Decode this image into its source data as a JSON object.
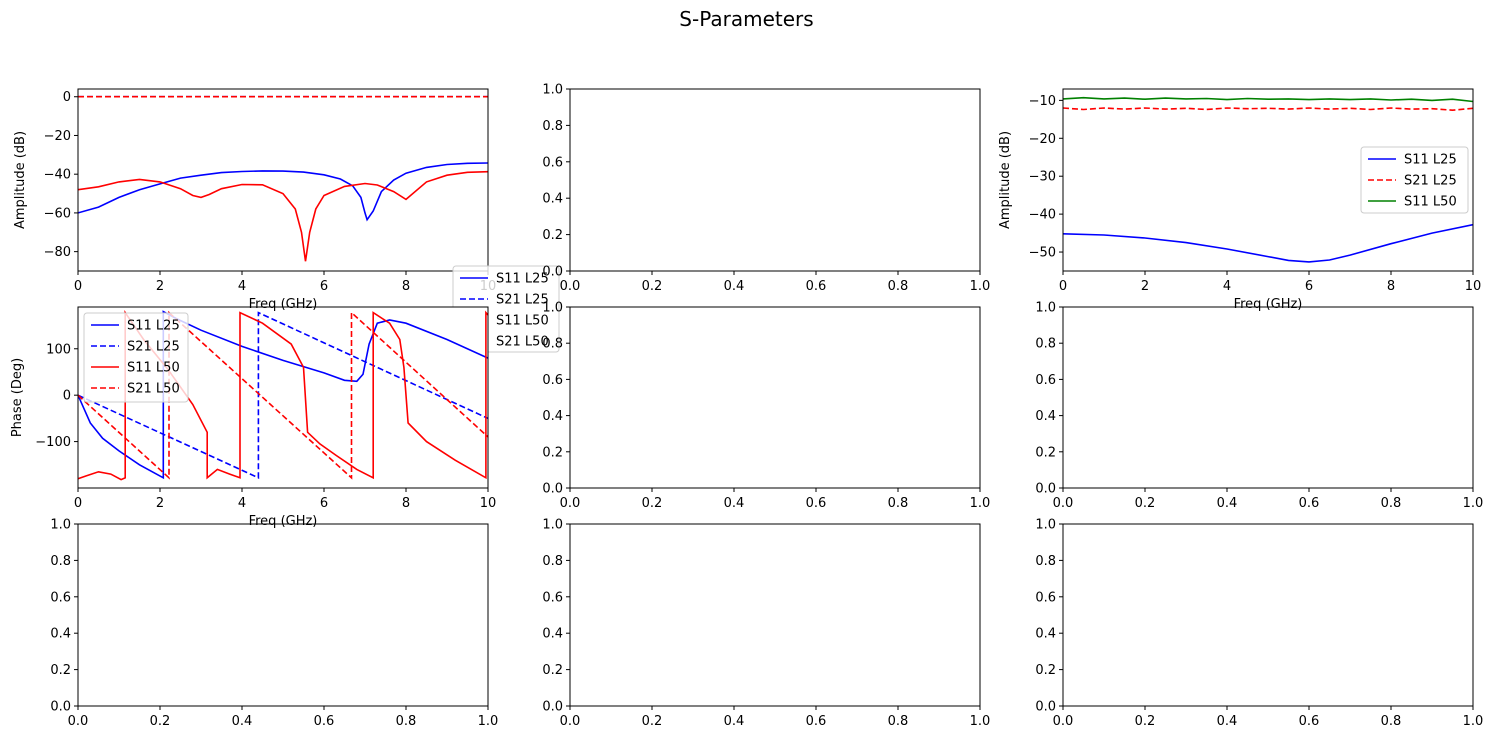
{
  "suptitle": "S-Parameters",
  "colors": {
    "blue": "#0000ff",
    "red": "#ff0000",
    "green": "#008000"
  },
  "chart_data": [
    {
      "id": "amp",
      "type": "line",
      "title": "",
      "xlabel": "Freq (GHz)",
      "ylabel": "Amplitude  (dB)",
      "xlim": [
        0,
        10
      ],
      "ylim": [
        -90,
        4
      ],
      "xticks": [
        0,
        2,
        4,
        6,
        8,
        10
      ],
      "xtick_labels": [
        "0",
        "2",
        "4",
        "6",
        "8",
        "10"
      ],
      "yticks": [
        0,
        -20,
        -40,
        -60,
        -80
      ],
      "ytick_labels": [
        "0",
        "−20",
        "−40",
        "−60",
        "−80"
      ],
      "grid": false,
      "legend": "lower-right",
      "series": [
        {
          "name": "S11 L25",
          "color": "blue",
          "dash": "solid",
          "x": [
            0,
            0.5,
            1,
            1.5,
            2,
            2.5,
            3,
            3.5,
            4,
            4.5,
            5,
            5.5,
            6,
            6.4,
            6.7,
            6.9,
            7.0,
            7.05,
            7.2,
            7.4,
            7.7,
            8,
            8.5,
            9,
            9.5,
            10
          ],
          "y": [
            -60,
            -57,
            -52,
            -48,
            -45,
            -42,
            -40.5,
            -39.2,
            -38.6,
            -38.3,
            -38.4,
            -38.9,
            -40.3,
            -42.5,
            -46,
            -52,
            -60,
            -63.5,
            -59,
            -49,
            -43,
            -39.5,
            -36.5,
            -35,
            -34.4,
            -34.2
          ]
        },
        {
          "name": "S21 L25",
          "color": "blue",
          "dash": "dashed",
          "x": [
            0,
            2,
            4,
            6,
            8,
            10
          ],
          "y": [
            0,
            0,
            0,
            0,
            0,
            0
          ]
        },
        {
          "name": "S11 L50",
          "color": "red",
          "dash": "solid",
          "x": [
            0,
            0.5,
            1,
            1.5,
            2,
            2.5,
            2.8,
            3,
            3.2,
            3.5,
            4,
            4.5,
            5,
            5.3,
            5.45,
            5.55,
            5.65,
            5.8,
            6,
            6.5,
            7,
            7.3,
            7.7,
            8,
            8.5,
            9,
            9.5,
            10
          ],
          "y": [
            -48,
            -46.5,
            -44,
            -42.7,
            -44,
            -47.5,
            -51,
            -52,
            -50.5,
            -47.5,
            -45.3,
            -45.5,
            -50,
            -58,
            -70,
            -85,
            -70,
            -58,
            -51,
            -46.3,
            -44.8,
            -45.6,
            -49,
            -53,
            -44,
            -40.5,
            -39,
            -38.7
          ]
        },
        {
          "name": "S21 L50",
          "color": "red",
          "dash": "dashed",
          "x": [
            0,
            2,
            4,
            6,
            8,
            10
          ],
          "y": [
            0,
            0,
            0,
            0,
            0,
            0
          ]
        }
      ]
    },
    {
      "id": "empty-1-2",
      "type": "line",
      "xlabel": "",
      "ylabel": "",
      "xlim": [
        0,
        1
      ],
      "ylim": [
        0,
        1
      ],
      "xticks": [
        0,
        0.2,
        0.4,
        0.6,
        0.8,
        1
      ],
      "xtick_labels": [
        "0.0",
        "0.2",
        "0.4",
        "0.6",
        "0.8",
        "1.0"
      ],
      "yticks": [
        0,
        0.2,
        0.4,
        0.6,
        0.8,
        1
      ],
      "ytick_labels": [
        "0.0",
        "0.2",
        "0.4",
        "0.6",
        "0.8",
        "1.0"
      ],
      "series": []
    },
    {
      "id": "amp2",
      "type": "line",
      "title": "",
      "xlabel": "Freq (GHz)",
      "ylabel": "Amplitude  (dB)",
      "xlim": [
        0,
        10
      ],
      "ylim": [
        -55,
        -7
      ],
      "xticks": [
        0,
        2,
        4,
        6,
        8,
        10
      ],
      "xtick_labels": [
        "0",
        "2",
        "4",
        "6",
        "8",
        "10"
      ],
      "yticks": [
        -10,
        -20,
        -30,
        -40,
        -50
      ],
      "ytick_labels": [
        "−10",
        "−20",
        "−30",
        "−40",
        "−50"
      ],
      "grid": false,
      "legend": "center-right",
      "series": [
        {
          "name": "S11 L25",
          "color": "blue",
          "dash": "solid",
          "x": [
            0,
            1,
            2,
            3,
            4,
            5,
            5.5,
            6,
            6.5,
            7,
            8,
            9,
            10
          ],
          "y": [
            -45.2,
            -45.5,
            -46.3,
            -47.5,
            -49.2,
            -51.2,
            -52.2,
            -52.6,
            -52.1,
            -50.8,
            -47.8,
            -45,
            -42.8
          ]
        },
        {
          "name": "S21 L25",
          "color": "red",
          "dash": "dashed",
          "x": [
            0,
            0.5,
            1,
            1.5,
            2,
            2.5,
            3,
            3.5,
            4,
            4.5,
            5,
            5.5,
            6,
            6.5,
            7,
            7.5,
            8,
            8.5,
            9,
            9.5,
            10
          ],
          "y": [
            -12,
            -12.4,
            -12,
            -12.3,
            -12,
            -12.3,
            -12.1,
            -12.4,
            -12,
            -12.2,
            -12.1,
            -12.3,
            -12,
            -12.3,
            -12.1,
            -12.4,
            -12,
            -12.3,
            -12.2,
            -12.6,
            -12.1
          ]
        },
        {
          "name": "S11 L50",
          "color": "green",
          "dash": "solid",
          "x": [
            0,
            0.5,
            1,
            1.5,
            2,
            2.5,
            3,
            3.5,
            4,
            4.5,
            5,
            5.5,
            6,
            6.5,
            7,
            7.5,
            8,
            8.5,
            9,
            9.5,
            10
          ],
          "y": [
            -9.6,
            -9.3,
            -9.6,
            -9.4,
            -9.7,
            -9.4,
            -9.6,
            -9.5,
            -9.8,
            -9.5,
            -9.7,
            -9.6,
            -9.8,
            -9.6,
            -9.8,
            -9.6,
            -9.9,
            -9.7,
            -10,
            -9.7,
            -10.3
          ]
        }
      ]
    },
    {
      "id": "phase",
      "type": "line",
      "title": "",
      "xlabel": "Freq (GHz)",
      "ylabel": "Phase (Deg)",
      "xlim": [
        0,
        10
      ],
      "ylim": [
        -200,
        190
      ],
      "xticks": [
        0,
        2,
        4,
        6,
        8,
        10
      ],
      "xtick_labels": [
        "0",
        "2",
        "4",
        "6",
        "8",
        "10"
      ],
      "yticks": [
        100,
        0,
        -100
      ],
      "ytick_labels": [
        "100",
        "0",
        "−100"
      ],
      "grid": false,
      "legend": "upper-left",
      "series": [
        {
          "name": "S11 L25",
          "color": "blue",
          "dash": "solid",
          "x": [
            0,
            0.3,
            0.6,
            1,
            1.5,
            2.08,
            2.08,
            2.4,
            3,
            4,
            5,
            6,
            6.5,
            6.8,
            6.95,
            7.1,
            7.3,
            7.6,
            8,
            9,
            10
          ],
          "y": [
            0,
            -60,
            -93,
            -120,
            -150,
            -178,
            180,
            165,
            140,
            105,
            75,
            48,
            32,
            30,
            45,
            110,
            155,
            162,
            155,
            120,
            80
          ]
        },
        {
          "name": "S21 L25",
          "color": "blue",
          "dash": "dashed",
          "x": [
            0,
            4.4,
            4.4,
            10
          ],
          "y": [
            0,
            -178,
            178,
            -50
          ]
        },
        {
          "name": "S11 L50",
          "color": "red",
          "dash": "solid",
          "x": [
            0,
            0.2,
            0.5,
            0.8,
            1.05,
            1.15,
            1.15,
            1.6,
            2.2,
            2.8,
            3.15,
            3.15,
            3.4,
            3.7,
            3.95,
            3.95,
            4.5,
            5.2,
            5.5,
            5.6,
            5.9,
            6.3,
            6.8,
            7.2,
            7.2,
            7.6,
            7.85,
            7.95,
            8.05,
            8.5,
            9.2,
            9.95,
            9.95,
            10.0
          ],
          "y": [
            -180,
            -174,
            -165,
            -170,
            -182,
            -178,
            178,
            120,
            55,
            -20,
            -80,
            -178,
            -160,
            -170,
            -178,
            178,
            155,
            110,
            60,
            -80,
            -105,
            -130,
            -160,
            -178,
            178,
            155,
            120,
            60,
            -60,
            -100,
            -140,
            -178,
            178,
            173
          ]
        },
        {
          "name": "S21 L50",
          "color": "red",
          "dash": "dashed",
          "x": [
            0,
            2.22,
            2.22,
            6.67,
            6.67,
            10
          ],
          "y": [
            0,
            -178,
            178,
            -178,
            178,
            -90
          ]
        }
      ]
    },
    {
      "id": "empty-2-2",
      "type": "line",
      "xlabel": "",
      "ylabel": "",
      "xlim": [
        0,
        1
      ],
      "ylim": [
        0,
        1
      ],
      "xticks": [
        0,
        0.2,
        0.4,
        0.6,
        0.8,
        1
      ],
      "xtick_labels": [
        "0.0",
        "0.2",
        "0.4",
        "0.6",
        "0.8",
        "1.0"
      ],
      "yticks": [
        0,
        0.2,
        0.4,
        0.6,
        0.8,
        1
      ],
      "ytick_labels": [
        "0.0",
        "0.2",
        "0.4",
        "0.6",
        "0.8",
        "1.0"
      ],
      "series": []
    },
    {
      "id": "empty-2-3",
      "type": "line",
      "xlabel": "",
      "ylabel": "",
      "xlim": [
        0,
        1
      ],
      "ylim": [
        0,
        1
      ],
      "xticks": [
        0,
        0.2,
        0.4,
        0.6,
        0.8,
        1
      ],
      "xtick_labels": [
        "0.0",
        "0.2",
        "0.4",
        "0.6",
        "0.8",
        "1.0"
      ],
      "yticks": [
        0,
        0.2,
        0.4,
        0.6,
        0.8,
        1
      ],
      "ytick_labels": [
        "0.0",
        "0.2",
        "0.4",
        "0.6",
        "0.8",
        "1.0"
      ],
      "series": []
    },
    {
      "id": "empty-3-1",
      "type": "line",
      "xlabel": "",
      "ylabel": "",
      "xlim": [
        0,
        1
      ],
      "ylim": [
        0,
        1
      ],
      "xticks": [
        0,
        0.2,
        0.4,
        0.6,
        0.8,
        1
      ],
      "xtick_labels": [
        "0.0",
        "0.2",
        "0.4",
        "0.6",
        "0.8",
        "1.0"
      ],
      "yticks": [
        0,
        0.2,
        0.4,
        0.6,
        0.8,
        1
      ],
      "ytick_labels": [
        "0.0",
        "0.2",
        "0.4",
        "0.6",
        "0.8",
        "1.0"
      ],
      "series": []
    },
    {
      "id": "empty-3-2",
      "type": "line",
      "xlabel": "",
      "ylabel": "",
      "xlim": [
        0,
        1
      ],
      "ylim": [
        0,
        1
      ],
      "xticks": [
        0,
        0.2,
        0.4,
        0.6,
        0.8,
        1
      ],
      "xtick_labels": [
        "0.0",
        "0.2",
        "0.4",
        "0.6",
        "0.8",
        "1.0"
      ],
      "yticks": [
        0,
        0.2,
        0.4,
        0.6,
        0.8,
        1
      ],
      "ytick_labels": [
        "0.0",
        "0.2",
        "0.4",
        "0.6",
        "0.8",
        "1.0"
      ],
      "series": []
    },
    {
      "id": "empty-3-3",
      "type": "line",
      "xlabel": "",
      "ylabel": "",
      "xlim": [
        0,
        1
      ],
      "ylim": [
        0,
        1
      ],
      "xticks": [
        0,
        0.2,
        0.4,
        0.6,
        0.8,
        1
      ],
      "xtick_labels": [
        "0.0",
        "0.2",
        "0.4",
        "0.6",
        "0.8",
        "1.0"
      ],
      "yticks": [
        0,
        0.2,
        0.4,
        0.6,
        0.8,
        1
      ],
      "ytick_labels": [
        "0.0",
        "0.2",
        "0.4",
        "0.6",
        "0.8",
        "1.0"
      ],
      "series": []
    }
  ]
}
